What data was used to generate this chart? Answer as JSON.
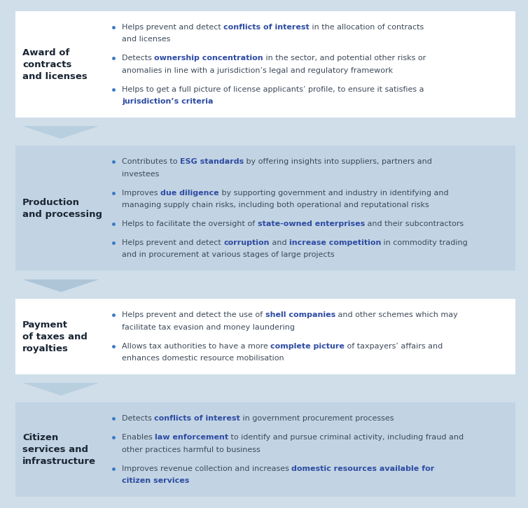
{
  "background_color": "#cfdee9",
  "sections": [
    {
      "title": "Award of\ncontracts\nand licenses",
      "bg_color": "#ffffff",
      "arrow_color": "#b8cfe0",
      "bullets": [
        [
          [
            {
              "t": "Helps prevent and detect ",
              "b": false,
              "c": "#3d4a5a"
            },
            {
              "t": "conflicts of interest",
              "b": true,
              "c": "#2e4ca3"
            },
            {
              "t": " in the allocation of contracts",
              "b": false,
              "c": "#3d4a5a"
            }
          ],
          [
            {
              "t": "and licenses",
              "b": false,
              "c": "#3d4a5a"
            }
          ]
        ],
        [
          [
            {
              "t": "Detects ",
              "b": false,
              "c": "#3d4a5a"
            },
            {
              "t": "ownership concentration",
              "b": true,
              "c": "#2e4ca3"
            },
            {
              "t": " in the sector, and potential other risks or",
              "b": false,
              "c": "#3d4a5a"
            }
          ],
          [
            {
              "t": "anomalies in line with a jurisdiction’s legal and regulatory framework",
              "b": false,
              "c": "#3d4a5a"
            }
          ]
        ],
        [
          [
            {
              "t": "Helps to get a full picture of license applicants’ profile, to ensure it satisfies a",
              "b": false,
              "c": "#3d4a5a"
            }
          ],
          [
            {
              "t": "jurisdiction’s criteria",
              "b": true,
              "c": "#2e4ca3"
            }
          ]
        ]
      ]
    },
    {
      "title": "Production\nand processing",
      "bg_color": "#c2d4e3",
      "arrow_color": "#aec5d7",
      "bullets": [
        [
          [
            {
              "t": "Contributes to ",
              "b": false,
              "c": "#3d4a5a"
            },
            {
              "t": "ESG standards",
              "b": true,
              "c": "#2e4ca3"
            },
            {
              "t": " by offering insights into suppliers, partners and",
              "b": false,
              "c": "#3d4a5a"
            }
          ],
          [
            {
              "t": "investees",
              "b": false,
              "c": "#3d4a5a"
            }
          ]
        ],
        [
          [
            {
              "t": "Improves ",
              "b": false,
              "c": "#3d4a5a"
            },
            {
              "t": "due diligence",
              "b": true,
              "c": "#2e4ca3"
            },
            {
              "t": " by supporting government and industry in identifying and",
              "b": false,
              "c": "#3d4a5a"
            }
          ],
          [
            {
              "t": "managing supply chain risks, including both operational and reputational risks",
              "b": false,
              "c": "#3d4a5a"
            }
          ]
        ],
        [
          [
            {
              "t": "Helps to facilitate the oversight of ",
              "b": false,
              "c": "#3d4a5a"
            },
            {
              "t": "state-owned enterprises",
              "b": true,
              "c": "#2e4ca3"
            },
            {
              "t": " and their subcontractors",
              "b": false,
              "c": "#3d4a5a"
            }
          ]
        ],
        [
          [
            {
              "t": "Helps prevent and detect ",
              "b": false,
              "c": "#3d4a5a"
            },
            {
              "t": "corruption",
              "b": true,
              "c": "#2e4ca3"
            },
            {
              "t": " and ",
              "b": false,
              "c": "#3d4a5a"
            },
            {
              "t": "increase competition",
              "b": true,
              "c": "#2e4ca3"
            },
            {
              "t": " in commodity trading",
              "b": false,
              "c": "#3d4a5a"
            }
          ],
          [
            {
              "t": "and in procurement at various stages of large projects",
              "b": false,
              "c": "#3d4a5a"
            }
          ]
        ]
      ]
    },
    {
      "title": "Payment\nof taxes and\nroyalties",
      "bg_color": "#ffffff",
      "arrow_color": "#b8cfe0",
      "bullets": [
        [
          [
            {
              "t": "Helps prevent and detect the use of ",
              "b": false,
              "c": "#3d4a5a"
            },
            {
              "t": "shell companies",
              "b": true,
              "c": "#2e4ca3"
            },
            {
              "t": " and other schemes which may",
              "b": false,
              "c": "#3d4a5a"
            }
          ],
          [
            {
              "t": "facilitate tax evasion and money laundering",
              "b": false,
              "c": "#3d4a5a"
            }
          ]
        ],
        [
          [
            {
              "t": "Allows tax authorities to have a more ",
              "b": false,
              "c": "#3d4a5a"
            },
            {
              "t": "complete picture",
              "b": true,
              "c": "#2e4ca3"
            },
            {
              "t": " of taxpayers’ affairs and",
              "b": false,
              "c": "#3d4a5a"
            }
          ],
          [
            {
              "t": "enhances domestic resource mobilisation",
              "b": false,
              "c": "#3d4a5a"
            }
          ]
        ]
      ]
    },
    {
      "title": "Citizen\nservices and\ninfrastructure",
      "bg_color": "#c2d4e3",
      "arrow_color": null,
      "bullets": [
        [
          [
            {
              "t": "Detects ",
              "b": false,
              "c": "#3d4a5a"
            },
            {
              "t": "conflicts of interest",
              "b": true,
              "c": "#2e4ca3"
            },
            {
              "t": " in government procurement processes",
              "b": false,
              "c": "#3d4a5a"
            }
          ]
        ],
        [
          [
            {
              "t": "Enables ",
              "b": false,
              "c": "#3d4a5a"
            },
            {
              "t": "law enforcement",
              "b": true,
              "c": "#2e4ca3"
            },
            {
              "t": " to identify and pursue criminal activity, including fraud and",
              "b": false,
              "c": "#3d4a5a"
            }
          ],
          [
            {
              "t": "other practices harmful to business",
              "b": false,
              "c": "#3d4a5a"
            }
          ]
        ],
        [
          [
            {
              "t": "Improves revenue collection and increases ",
              "b": false,
              "c": "#3d4a5a"
            },
            {
              "t": "domestic resources available for",
              "b": true,
              "c": "#2e4ca3"
            }
          ],
          [
            {
              "t": "citizen services",
              "b": true,
              "c": "#2e4ca3"
            }
          ]
        ]
      ]
    }
  ],
  "bullet_dot_color": "#3a78c4",
  "title_color": "#1a2533",
  "fs_title": 9.5,
  "fs_body": 8.0
}
